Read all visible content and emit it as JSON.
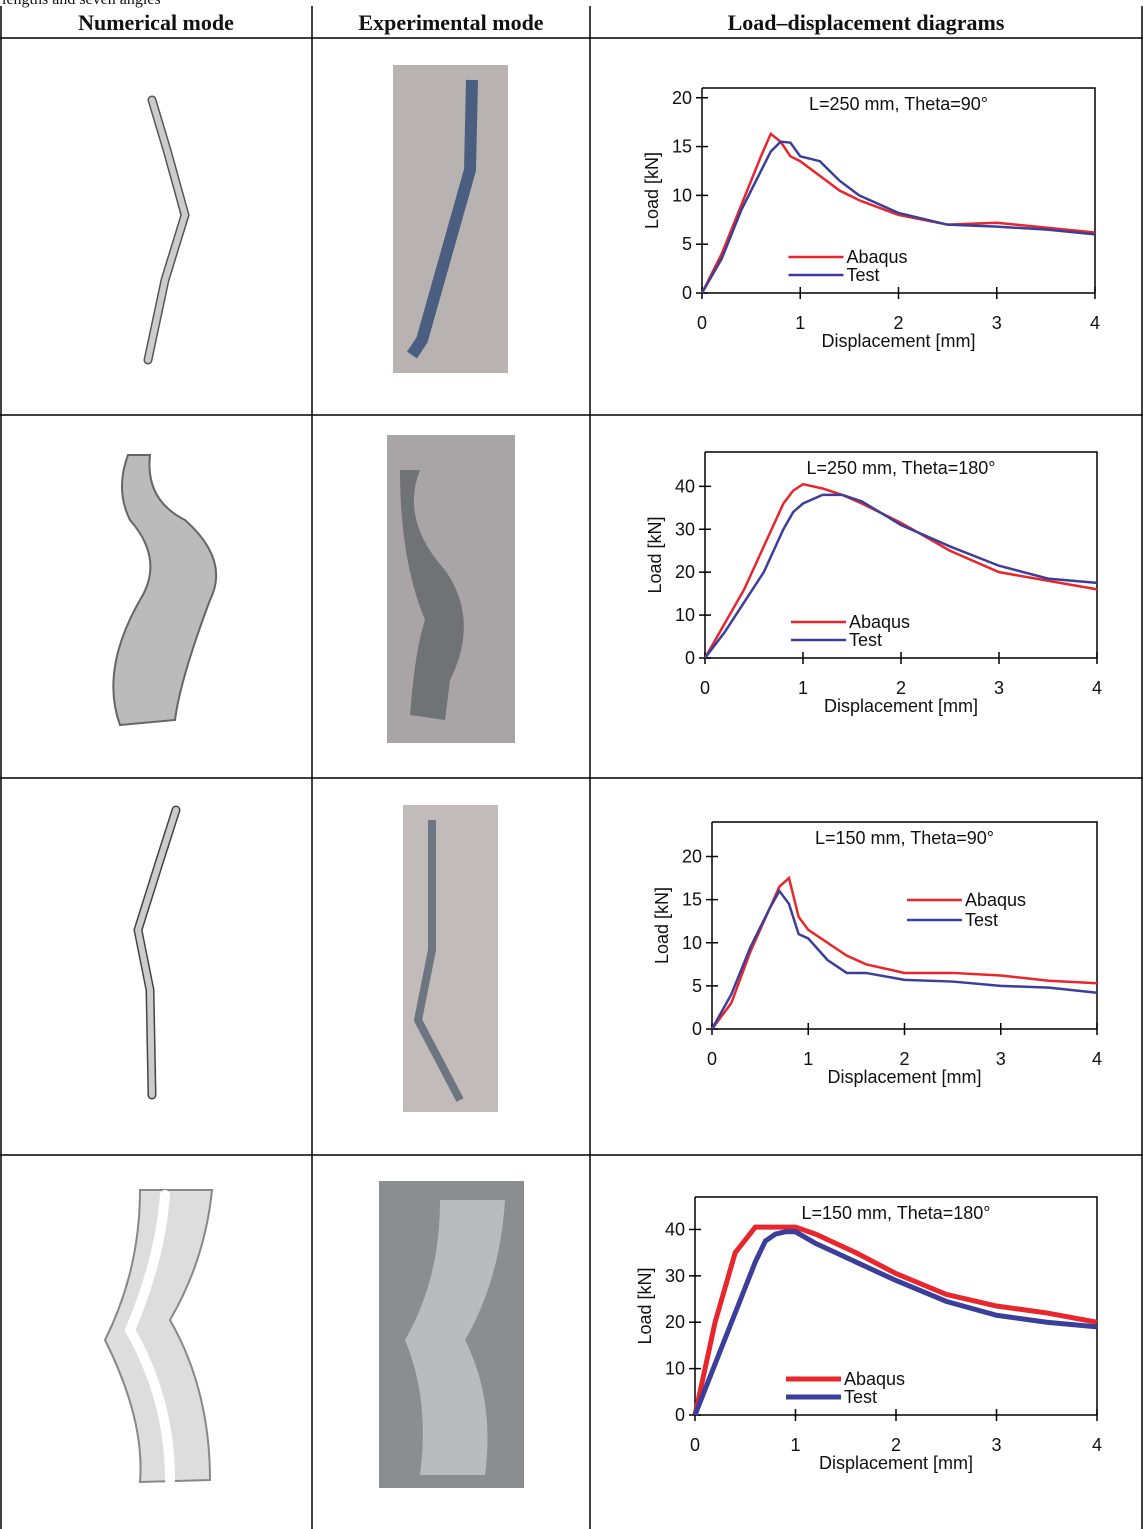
{
  "caption": "lengths and seven angles",
  "table": {
    "headers": [
      "Numerical mode",
      "Experimental mode",
      "Load–displacement diagrams"
    ]
  },
  "chart_data": [
    {
      "type": "line",
      "title": "L=250 mm, Theta=90°",
      "x_label": "Displacement [mm]",
      "y_label": "Load [kN]",
      "x": [
        0,
        0.2,
        0.4,
        0.6,
        0.7,
        0.8,
        0.9,
        1,
        1.2,
        1.4,
        1.6,
        2,
        2.5,
        3,
        3.5,
        4
      ],
      "series": [
        {
          "name": "Abaqus",
          "color": "#e8262b",
          "values": [
            0,
            4,
            9,
            14,
            16.3,
            15.5,
            14,
            13.5,
            12,
            10.5,
            9.5,
            8,
            7,
            7.2,
            6.7,
            6.2
          ]
        },
        {
          "name": "Test",
          "color": "#3b3f9a",
          "values": [
            0,
            3.5,
            8.5,
            12.5,
            14.5,
            15.5,
            15.4,
            14,
            13.5,
            11.5,
            10,
            8.2,
            7,
            6.8,
            6.5,
            6
          ]
        }
      ],
      "xlim": [
        0,
        4
      ],
      "xticks": [
        0,
        1,
        2,
        3,
        4
      ],
      "ylim": [
        0,
        21
      ],
      "yticks": [
        0,
        5,
        10,
        15,
        20
      ],
      "legend": "lower center"
    },
    {
      "type": "line",
      "title": "L=250 mm, Theta=180°",
      "x_label": "Displacement [mm]",
      "y_label": "Load [kN]",
      "x": [
        0,
        0.2,
        0.4,
        0.6,
        0.8,
        0.9,
        1,
        1.2,
        1.4,
        1.6,
        2,
        2.5,
        3,
        3.5,
        4
      ],
      "series": [
        {
          "name": "Abaqus",
          "color": "#e8262b",
          "values": [
            0,
            8,
            16,
            26,
            36,
            39,
            40.5,
            39.5,
            38,
            36,
            31.5,
            25,
            20,
            18,
            16
          ]
        },
        {
          "name": "Test",
          "color": "#3b3f9a",
          "values": [
            0,
            6,
            13,
            20,
            30,
            34,
            36,
            38,
            38,
            36.5,
            31,
            26,
            21.5,
            18.5,
            17.5
          ]
        }
      ],
      "xlim": [
        0,
        4
      ],
      "xticks": [
        0,
        1,
        2,
        3,
        4
      ],
      "ylim": [
        0,
        48
      ],
      "yticks": [
        0,
        10,
        20,
        30,
        40
      ],
      "legend": "lower center"
    },
    {
      "type": "line",
      "title": "L=150 mm, Theta=90°",
      "x_label": "Displacement [mm]",
      "y_label": "Load [kN]",
      "x": [
        0,
        0.2,
        0.4,
        0.6,
        0.7,
        0.8,
        0.9,
        1,
        1.2,
        1.4,
        1.6,
        2,
        2.5,
        3,
        3.5,
        4
      ],
      "series": [
        {
          "name": "Abaqus",
          "color": "#e8262b",
          "values": [
            0,
            3,
            9,
            14,
            16.5,
            17.5,
            13,
            11.5,
            10,
            8.5,
            7.5,
            6.5,
            6.5,
            6.2,
            5.6,
            5.3
          ]
        },
        {
          "name": "Test",
          "color": "#3b3f9a",
          "values": [
            0,
            4,
            9.5,
            14,
            16,
            14.5,
            11,
            10.5,
            8,
            6.5,
            6.5,
            5.7,
            5.5,
            5,
            4.8,
            4.2
          ]
        }
      ],
      "xlim": [
        0,
        4
      ],
      "xticks": [
        0,
        1,
        2,
        3,
        4
      ],
      "ylim": [
        0,
        24
      ],
      "yticks": [
        0,
        5,
        10,
        15,
        20
      ],
      "legend": "upper right"
    },
    {
      "type": "line",
      "title": "L=150 mm, Theta=180°",
      "x_label": "Displacement [mm]",
      "y_label": "Load [kN]",
      "x": [
        0,
        0.2,
        0.4,
        0.6,
        0.7,
        0.8,
        0.9,
        1,
        1.2,
        1.4,
        1.6,
        2,
        2.5,
        3,
        3.5,
        4
      ],
      "series": [
        {
          "name": "Abaqus",
          "color": "#e8262b",
          "values": [
            0,
            20,
            35,
            40.5,
            40.5,
            40.5,
            40.5,
            40.5,
            39,
            37,
            35,
            30.5,
            26,
            23.5,
            22,
            20
          ]
        },
        {
          "name": "Test",
          "color": "#3b3f9a",
          "values": [
            0,
            11,
            22,
            33,
            37.5,
            39,
            39.5,
            39.5,
            37,
            35,
            33,
            29,
            24.5,
            21.5,
            20,
            19
          ]
        }
      ],
      "xlim": [
        0,
        4
      ],
      "xticks": [
        0,
        1,
        2,
        3,
        4
      ],
      "ylim": [
        0,
        47
      ],
      "yticks": [
        0,
        10,
        20,
        30,
        40
      ],
      "legend": "lower center"
    }
  ]
}
